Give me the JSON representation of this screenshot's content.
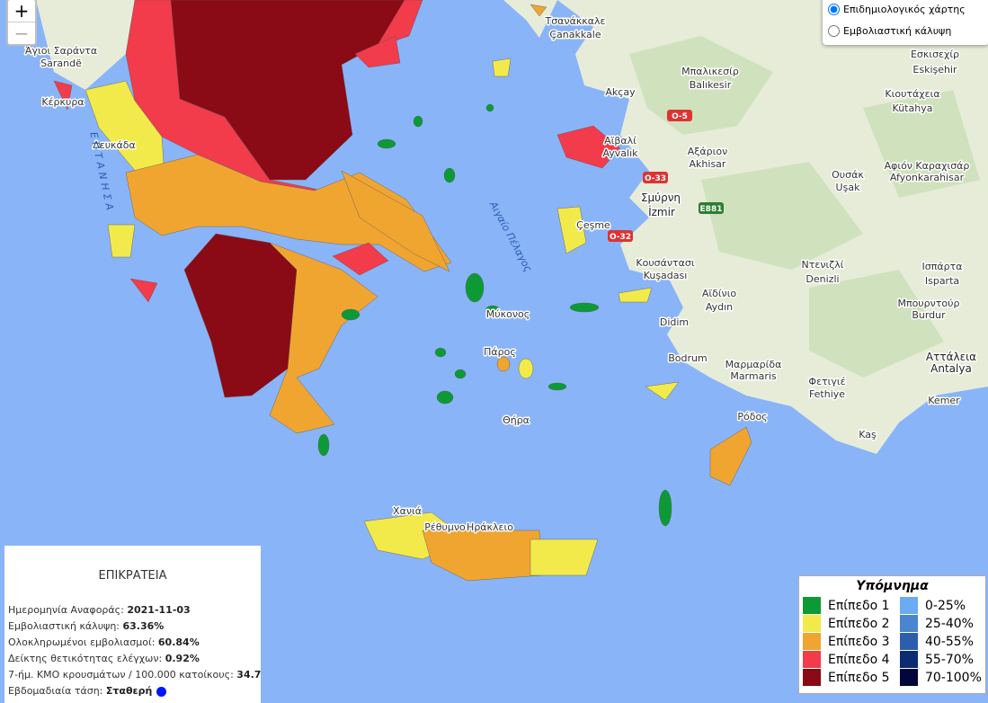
{
  "zoom_controls": {
    "zoom_in": "+",
    "zoom_out": "−"
  },
  "layer_options": [
    {
      "label": "Επιδημιολογικός χάρτης",
      "selected": true
    },
    {
      "label": "Εμβολιαστική κάλυψη",
      "selected": false
    }
  ],
  "info_panel": {
    "title": "ΕΠΙΚΡΑΤΕΙΑ",
    "rows": [
      {
        "label": "Ημερομηνία Αναφοράς:",
        "value": "2021-11-03"
      },
      {
        "label": "Εμβολιαστική κάλυψη:",
        "value": "63.36%"
      },
      {
        "label": "Ολοκληρωμένοι εμβολιασμοί:",
        "value": "60.84%"
      },
      {
        "label": "Δείκτης θετικότητας ελέγχων:",
        "value": "0.92%"
      },
      {
        "label": "7-ήμ. ΚΜΟ κρουσμάτων / 100.000 κατοίκους:",
        "value": "34.7"
      },
      {
        "label": "Εβδομαδιαία τάση:",
        "value": "Σταθερή"
      }
    ]
  },
  "legend": {
    "title": "Υπόμνημα",
    "levels": [
      {
        "label": "Επίπεδο 1",
        "color": "#0d9a36"
      },
      {
        "label": "Επίπεδο 2",
        "color": "#f2ea4a"
      },
      {
        "label": "Επίπεδο 3",
        "color": "#f0a531"
      },
      {
        "label": "Επίπεδο 4",
        "color": "#f23b4b"
      },
      {
        "label": "Επίπεδο 5",
        "color": "#8a0b15"
      }
    ],
    "coverage": [
      {
        "label": "0-25%",
        "color": "#6aabf2"
      },
      {
        "label": "25-40%",
        "color": "#4a85cf"
      },
      {
        "label": "40-55%",
        "color": "#2b5fae"
      },
      {
        "label": "55-70%",
        "color": "#0b2c72"
      },
      {
        "label": "70-100%",
        "color": "#02063a"
      }
    ]
  },
  "map_labels": [
    "Τσανάκκαλε",
    "Çanakkale",
    "Μπαλικεσίρ",
    "Balıkesir",
    "Εσκισεχίρ",
    "Eskişehir",
    "Κιουτάχεια",
    "Kütahya",
    "Akçay",
    "Αϊβαλί",
    "Ayvalık",
    "Αξάριον",
    "Akhisar",
    "Ουσάκ",
    "Uşak",
    "Αφιόν Καραχισάρ",
    "Afyonkarahisar",
    "Σμύρνη",
    "İzmir",
    "Çeşme",
    "Κουσάντασι",
    "Kuşadası",
    "Αϊδίνιο",
    "Aydın",
    "Ντενιζλί",
    "Denizli",
    "Ισπάρτα",
    "Isparta",
    "Μπουρντούρ",
    "Burdur",
    "Didim",
    "Bodrum",
    "Μαρμαρίδα",
    "Marmaris",
    "Φετιγιέ",
    "Fethiye",
    "Αττάλεια",
    "Antalya",
    "Kemer",
    "Kaş",
    "Ρόδος",
    "Αιγαίο Πέλαγος",
    "Μύκονος",
    "Πάρος",
    "Θήρα",
    "Χανιά",
    "Ρέθυμνο",
    "Ηράκλειο",
    "Άγιοι Σαράντα",
    "Sarandë",
    "Κέρκυρα",
    "Λευκάδα",
    "ΕΠΤΑΝΗΣΑ",
    "O-5",
    "O-33",
    "O-32",
    "E881"
  ]
}
